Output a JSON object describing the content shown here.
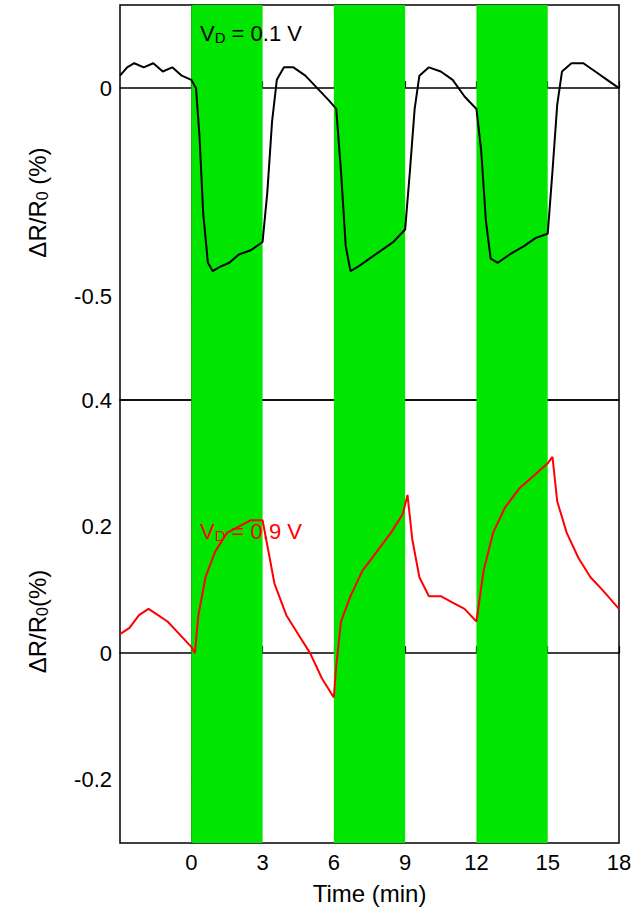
{
  "chart_data": [
    {
      "type": "line",
      "annotation": {
        "main": "V",
        "sub": "D",
        "rest": " = 0.1 V"
      },
      "ylabel": {
        "main": "ΔR/R",
        "sub": "0",
        "rest": " (%)"
      },
      "xlim": [
        -3,
        18
      ],
      "xticks": [
        0,
        3,
        6,
        9,
        12,
        15,
        18
      ],
      "ylim": [
        -0.75,
        0.2
      ],
      "yticks": [
        -0.5,
        0
      ],
      "tick_labels": "y",
      "grid": false,
      "bands": [
        {
          "x": [
            0,
            3
          ],
          "color": "#00e600"
        },
        {
          "x": [
            6,
            9
          ],
          "color": "#00e600"
        },
        {
          "x": [
            12,
            15
          ],
          "color": "#00e600"
        }
      ],
      "x": [
        -3,
        -2.7,
        -2.4,
        -2,
        -1.6,
        -1.2,
        -0.8,
        -0.4,
        0,
        0.2,
        0.35,
        0.5,
        0.7,
        0.9,
        1.2,
        1.6,
        2,
        2.5,
        3,
        3.2,
        3.4,
        3.6,
        3.9,
        4.3,
        4.8,
        5.3,
        5.8,
        6.1,
        6.3,
        6.5,
        6.7,
        7,
        7.5,
        8,
        8.5,
        9,
        9.2,
        9.4,
        9.6,
        10,
        10.5,
        11,
        11.5,
        12,
        12.2,
        12.4,
        12.6,
        12.9,
        13.4,
        14,
        14.5,
        15,
        15.2,
        15.4,
        15.6,
        16,
        16.5,
        17,
        17.5,
        18
      ],
      "series": [
        {
          "color": "#000000",
          "values": [
            0.03,
            0.05,
            0.06,
            0.05,
            0.06,
            0.04,
            0.05,
            0.03,
            0.02,
            0.0,
            -0.12,
            -0.3,
            -0.42,
            -0.44,
            -0.43,
            -0.42,
            -0.4,
            -0.39,
            -0.37,
            -0.25,
            -0.08,
            0.02,
            0.05,
            0.05,
            0.03,
            0.0,
            -0.03,
            -0.05,
            -0.2,
            -0.38,
            -0.44,
            -0.43,
            -0.41,
            -0.39,
            -0.37,
            -0.34,
            -0.2,
            -0.05,
            0.03,
            0.05,
            0.04,
            0.02,
            -0.02,
            -0.05,
            -0.15,
            -0.32,
            -0.41,
            -0.42,
            -0.4,
            -0.38,
            -0.36,
            -0.35,
            -0.2,
            -0.04,
            0.04,
            0.06,
            0.06,
            0.04,
            0.02,
            0.0
          ]
        }
      ]
    },
    {
      "type": "line",
      "annotation": {
        "main": "V",
        "sub": "D",
        "rest": " = 0.9 V"
      },
      "ylabel": {
        "main": "ΔR/R",
        "sub": "0",
        "rest": "(%)"
      },
      "xlabel": "Time (min)",
      "xlim": [
        -3,
        18
      ],
      "xticks": [
        0,
        3,
        6,
        9,
        12,
        15,
        18
      ],
      "ylim": [
        -0.3,
        0.4
      ],
      "yticks": [
        -0.2,
        0,
        0.2,
        0.4
      ],
      "grid": false,
      "bands": [
        {
          "x": [
            0,
            3
          ],
          "color": "#00e600"
        },
        {
          "x": [
            6,
            9
          ],
          "color": "#00e600"
        },
        {
          "x": [
            12,
            15
          ],
          "color": "#00e600"
        }
      ],
      "x": [
        -3,
        -2.6,
        -2.2,
        -1.8,
        -1.4,
        -1,
        -0.5,
        0,
        0.15,
        0.3,
        0.6,
        1,
        1.5,
        2,
        2.5,
        3,
        3.2,
        3.5,
        4,
        4.5,
        5,
        5.5,
        6,
        6.1,
        6.3,
        6.7,
        7.2,
        7.8,
        8.4,
        8.9,
        9.1,
        9.3,
        9.6,
        10,
        10.5,
        11,
        11.5,
        12,
        12.3,
        12.7,
        13.2,
        13.8,
        14.4,
        15,
        15.2,
        15.4,
        15.8,
        16.3,
        16.8,
        17.3,
        18
      ],
      "series": [
        {
          "color": "#ff0000",
          "values": [
            0.03,
            0.04,
            0.06,
            0.07,
            0.06,
            0.05,
            0.03,
            0.01,
            0.0,
            0.06,
            0.12,
            0.16,
            0.19,
            0.2,
            0.21,
            0.21,
            0.17,
            0.11,
            0.06,
            0.03,
            0.0,
            -0.04,
            -0.07,
            -0.02,
            0.05,
            0.09,
            0.13,
            0.16,
            0.19,
            0.22,
            0.25,
            0.18,
            0.12,
            0.09,
            0.09,
            0.08,
            0.07,
            0.05,
            0.13,
            0.19,
            0.23,
            0.26,
            0.28,
            0.3,
            0.31,
            0.24,
            0.19,
            0.15,
            0.12,
            0.1,
            0.07
          ]
        }
      ]
    }
  ]
}
